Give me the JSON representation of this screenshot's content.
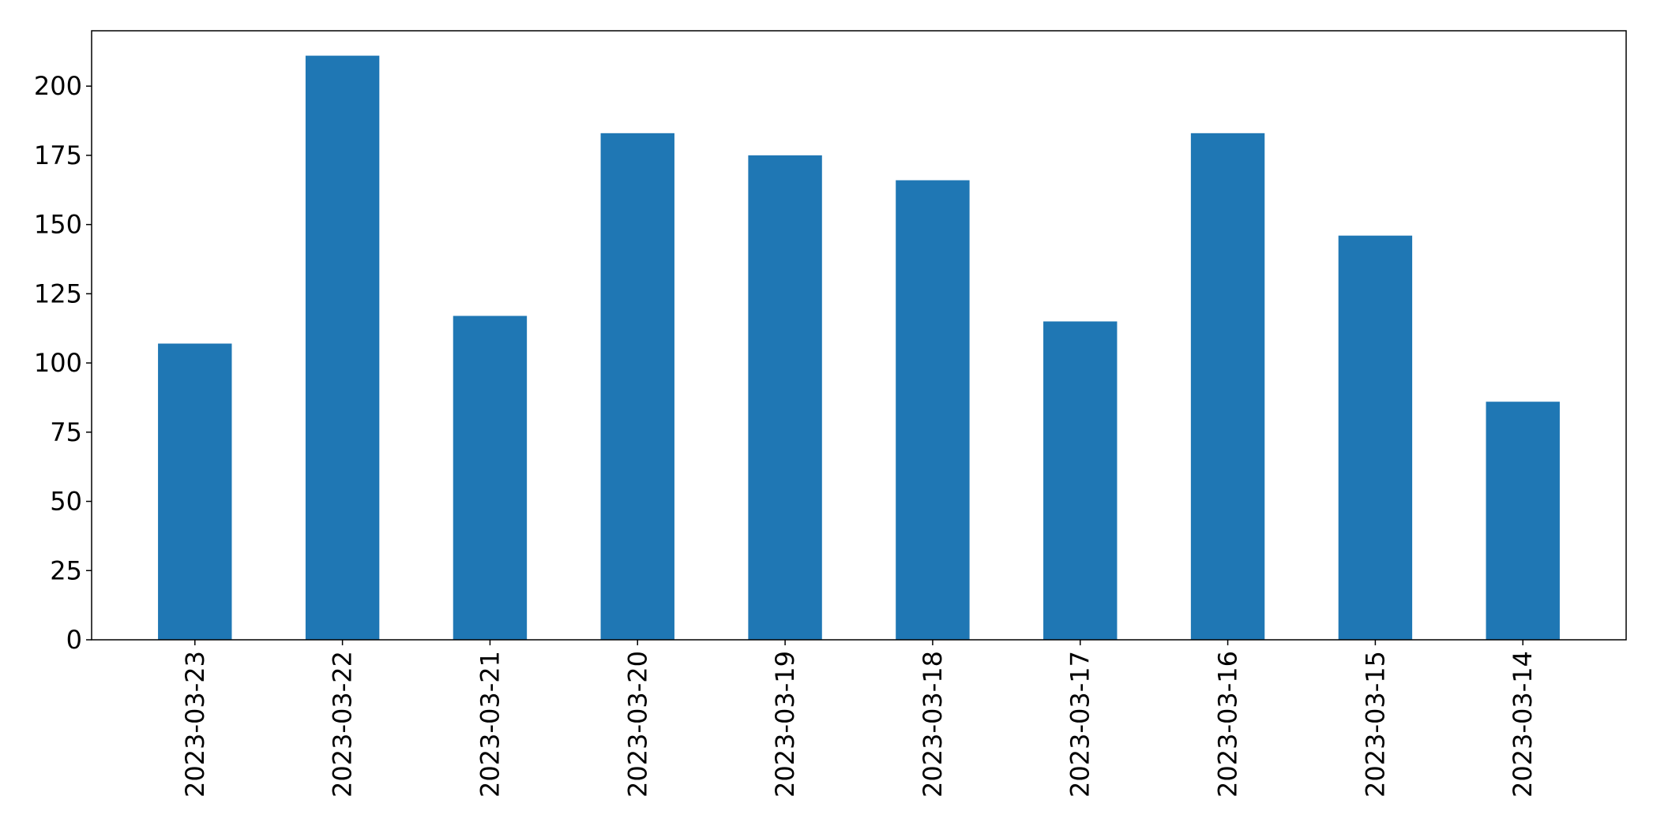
{
  "chart_data": {
    "type": "bar",
    "categories": [
      "2023-03-23",
      "2023-03-22",
      "2023-03-21",
      "2023-03-20",
      "2023-03-19",
      "2023-03-18",
      "2023-03-17",
      "2023-03-16",
      "2023-03-15",
      "2023-03-14"
    ],
    "values": [
      107,
      211,
      117,
      183,
      175,
      166,
      115,
      183,
      146,
      86
    ],
    "title": "",
    "xlabel": "",
    "ylabel": "",
    "ylim": [
      0,
      220
    ],
    "yticks": [
      0,
      25,
      50,
      75,
      100,
      125,
      150,
      175,
      200
    ],
    "grid": false,
    "legend": "none",
    "bar_color": "#1f77b4"
  }
}
